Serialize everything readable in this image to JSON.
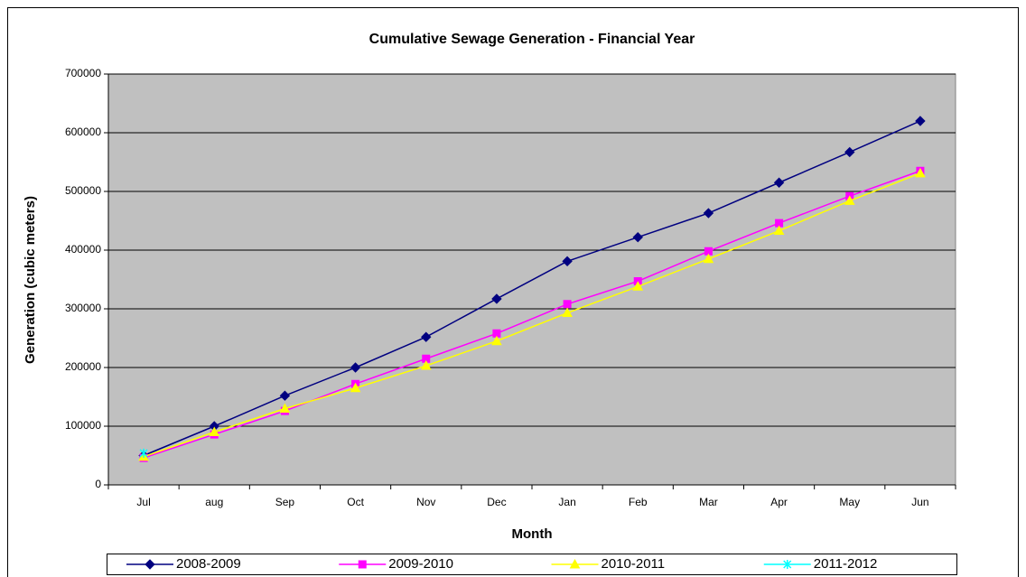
{
  "chart_data": {
    "type": "line",
    "title": "Cumulative Sewage Generation - Financial Year",
    "x_label": "Month",
    "y_label": "Generation (cubic meters)",
    "categories": [
      "Jul",
      "aug",
      "Sep",
      "Oct",
      "Nov",
      "Dec",
      "Jan",
      "Feb",
      "Mar",
      "Apr",
      "May",
      "Jun"
    ],
    "series": [
      {
        "name": "2008-2009",
        "color": "#000080",
        "marker": "diamond",
        "values": [
          50000,
          100000,
          152000,
          200000,
          252000,
          317000,
          381000,
          422000,
          463000,
          515000,
          567000,
          620000
        ]
      },
      {
        "name": "2009-2010",
        "color": "#ff00ff",
        "marker": "square",
        "values": [
          46000,
          86000,
          126000,
          172000,
          215000,
          258000,
          308000,
          347000,
          398000,
          446000,
          492000,
          535000
        ]
      },
      {
        "name": "2010-2011",
        "color": "#ffff00",
        "marker": "triangle",
        "values": [
          48000,
          90000,
          130000,
          165000,
          203000,
          245000,
          293000,
          338000,
          385000,
          433000,
          484000,
          531000
        ]
      },
      {
        "name": "2011-2012",
        "color": "#00ffff",
        "marker": "x",
        "values": [
          54000,
          null,
          null,
          null,
          null,
          null,
          null,
          null,
          null,
          null,
          null,
          null
        ]
      }
    ],
    "ylim": [
      0,
      700000
    ],
    "yticks": [
      0,
      100000,
      200000,
      300000,
      400000,
      500000,
      600000,
      700000
    ],
    "grid": true,
    "legend": "bottom",
    "plot_background": "#c0c0c0"
  }
}
